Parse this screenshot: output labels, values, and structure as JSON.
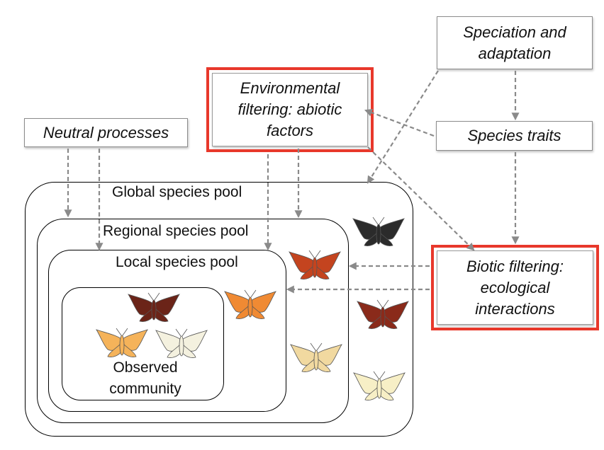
{
  "boxes": {
    "speciation": "Speciation and adaptation",
    "environmental": "Environmental filtering: abiotic factors",
    "neutral": "Neutral processes",
    "species_traits": "Species traits",
    "biotic": "Biotic filtering: ecological interactions"
  },
  "pools": {
    "global": "Global species pool",
    "regional": "Regional species pool",
    "local": "Local species pool",
    "observed": "Observed community"
  },
  "colors": {
    "highlight_border": "#e8382b",
    "arrow": "#8a8a8a",
    "moth_black": "#2b2b2b",
    "moth_dark_brown": "#6b2418",
    "moth_rust": "#c4441f",
    "moth_orange": "#f08a33",
    "moth_light_orange": "#f5b35a",
    "moth_pale_yellow": "#f4dfa3",
    "moth_cream": "#f6f1d8"
  },
  "moths": [
    {
      "name": "black",
      "color": "#2b2b2b"
    },
    {
      "name": "rust",
      "color": "#c4441f"
    },
    {
      "name": "dark-brown",
      "color": "#8a2a1a"
    },
    {
      "name": "pale-yellow",
      "color": "#f1d9a0"
    },
    {
      "name": "cream",
      "color": "#f7efc6"
    },
    {
      "name": "orange",
      "color": "#f08a33"
    },
    {
      "name": "dark-brown",
      "color": "#6b2418"
    },
    {
      "name": "light-orange",
      "color": "#f5b35a"
    },
    {
      "name": "cream",
      "color": "#f4f1df"
    }
  ]
}
